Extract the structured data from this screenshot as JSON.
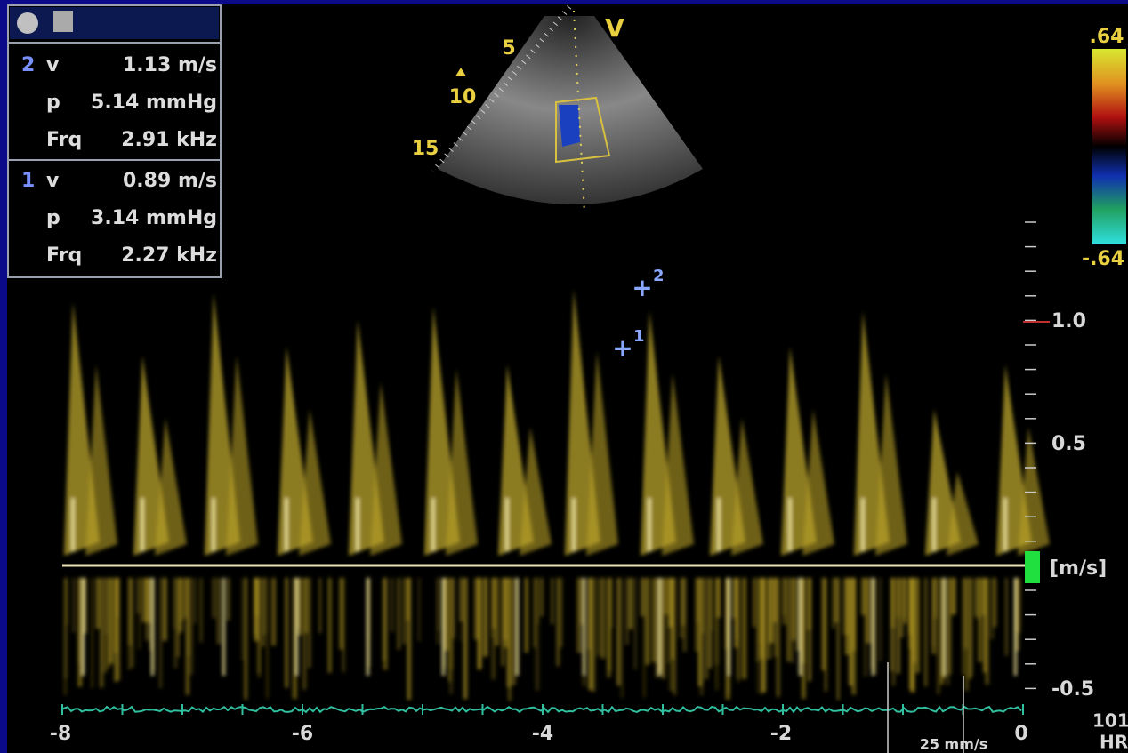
{
  "measurements": [
    {
      "index": "2",
      "rows": [
        [
          "v",
          "1.13 m/s"
        ],
        [
          "p",
          "5.14 mmHg"
        ],
        [
          "Frq",
          "2.91 kHz"
        ]
      ]
    },
    {
      "index": "1",
      "rows": [
        [
          "v",
          "0.89 m/s"
        ],
        [
          "p",
          "3.14 mmHg"
        ],
        [
          "Frq",
          "2.27 kHz"
        ]
      ]
    }
  ],
  "sector": {
    "depth_labels": [
      "5",
      "10",
      "15"
    ],
    "mode": "V"
  },
  "color_scale": {
    "max": ".64",
    "min": "-.64"
  },
  "velocity_axis": {
    "labels": [
      "1.0",
      "0.5",
      "-0.5"
    ],
    "unit": "[m/s]"
  },
  "time_axis": {
    "labels": [
      "-8",
      "-6",
      "-4",
      "-2",
      "0"
    ]
  },
  "cursors": [
    "1",
    "2"
  ],
  "sweep_speed": "25 mm/s",
  "heart_rate": {
    "value": "101",
    "label": "HR"
  }
}
